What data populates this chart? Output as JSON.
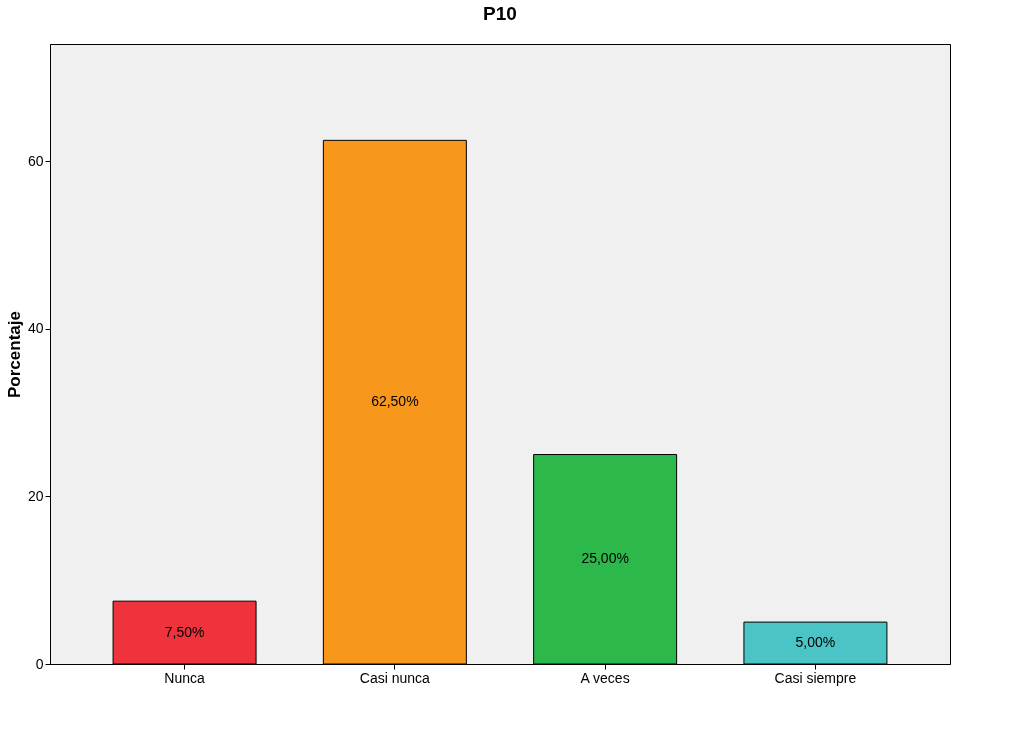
{
  "chart_data": {
    "type": "bar",
    "title": "P10",
    "ylabel": "Porcentaje",
    "categories": [
      "Nunca",
      "Casi nunca",
      "A veces",
      "Casi siempre"
    ],
    "values": [
      7.5,
      62.5,
      25,
      5
    ],
    "colors": [
      "#ee333d",
      "#f7981d",
      "#2db84b",
      "#4bc4c6"
    ],
    "value_labels": [
      "7,50%",
      "62,50%",
      "25,00%",
      "5,00%"
    ],
    "ylim": [
      0,
      74
    ],
    "yticks": [
      0,
      20,
      40,
      60
    ],
    "grid": false,
    "legend": false
  }
}
